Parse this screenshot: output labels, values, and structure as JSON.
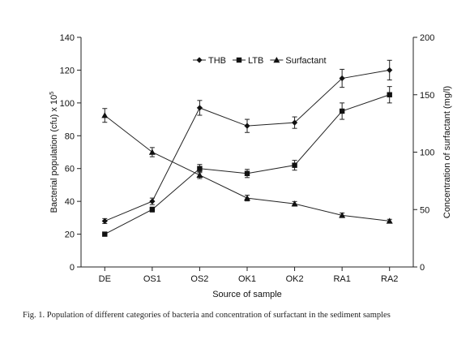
{
  "caption": "Fig. 1. Population of different categories of bacteria and concentration of surfactant in the sediment samples",
  "chart_data": {
    "type": "line",
    "xlabel": "Source of sample",
    "ylabel_left": "Bacterial population (cfu) x 10",
    "ylabel_left_superscript": "5",
    "ylabel_right": "Concentration of surfactant (mg/l)",
    "categories": [
      "DE",
      "OS1",
      "OS2",
      "OK1",
      "OK2",
      "RA1",
      "RA2"
    ],
    "ylim_left": [
      0,
      140
    ],
    "yticks_left": [
      0,
      20,
      40,
      60,
      80,
      100,
      120,
      140
    ],
    "ylim_right": [
      0,
      200
    ],
    "yticks_right": [
      0,
      50,
      100,
      150,
      200
    ],
    "grid": false,
    "legend_position": "top-center",
    "series": [
      {
        "name": "THB",
        "axis": "left",
        "marker": "diamond",
        "values": [
          28,
          40,
          97,
          86,
          88,
          115,
          120
        ],
        "errors": [
          1.5,
          2,
          4.5,
          4,
          3.5,
          5.5,
          6
        ]
      },
      {
        "name": "LTB",
        "axis": "left",
        "marker": "square",
        "values": [
          20,
          35,
          60,
          57,
          62,
          95,
          105
        ],
        "errors": [
          0,
          1.5,
          2.5,
          2.5,
          3,
          5,
          5
        ]
      },
      {
        "name": "Surfactant",
        "axis": "right",
        "marker": "triangle",
        "values": [
          132,
          100,
          80,
          60,
          55,
          45,
          40
        ],
        "errors": [
          6,
          4,
          3,
          2.5,
          2,
          2,
          1.5
        ]
      }
    ]
  }
}
